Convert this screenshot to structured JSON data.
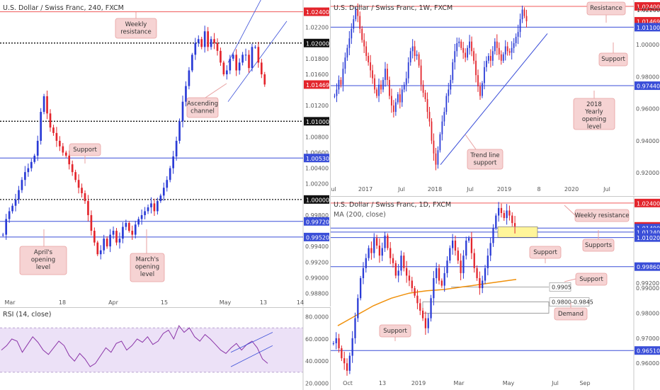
{
  "colors": {
    "up": "#2a3bd6",
    "down": "#e3252c",
    "resistance_line": "#f05a5a",
    "support_line": "#3a4ed8",
    "dotted_line": "#111111",
    "callout_bg": "#f6d3d3",
    "callout_border": "#e8a0a0",
    "ma": "#f0900a",
    "rsi_line": "#8b35a8",
    "rsi_band": "#ece1f7",
    "zone_fill": "#fff59a",
    "price_tag": "#e3252c"
  },
  "panels": [
    {
      "id": "h4",
      "title": "U.S. Dollar / Swiss Franc, 240, FXCM",
      "x_ticks": [
        "Mar",
        "18",
        "Apr",
        "15",
        "May",
        "13",
        "14"
      ],
      "price_axis": [
        "1.02400",
        "1.02200",
        "1.02000",
        "1.01800",
        "1.01600",
        "1.01469",
        "1.01200",
        "1.01000",
        "1.00800",
        "1.00600",
        "1.00530",
        "1.00400",
        "1.00200",
        "1.00000",
        "0.99800",
        "0.99720",
        "0.99520",
        "0.99400",
        "0.99200",
        "0.99000",
        "0.98800"
      ],
      "level_tags": [
        {
          "label": "1.02400",
          "kind": "resistance"
        },
        {
          "label": "1.02000",
          "kind": "dotted"
        },
        {
          "label": "1.01469",
          "kind": "price"
        },
        {
          "label": "1.01000",
          "kind": "dotted"
        },
        {
          "label": "1.00530",
          "kind": "support"
        },
        {
          "label": "1.00000",
          "kind": "dotted"
        },
        {
          "label": "0.99720",
          "kind": "support"
        },
        {
          "label": "0.99520",
          "kind": "support"
        }
      ],
      "callouts": [
        "Weekly resistance",
        "Ascending channel",
        "Support",
        "April's opening level",
        "March's opening level"
      ]
    },
    {
      "id": "rsi",
      "title": "RSI (14, close)",
      "axis": [
        "80.0000",
        "60.0000",
        "40.0000",
        "20.0000"
      ]
    },
    {
      "id": "weekly",
      "title": "U.S. Dollar / Swiss Franc, 1W, FXCM",
      "x_ticks": [
        "ul",
        "2017",
        "Jul",
        "2018",
        "Jul",
        "2019",
        "8",
        "2020",
        "Jul"
      ],
      "price_axis": [
        "1.02400",
        "1.02200",
        "1.01469",
        "1.01100",
        "1.00000",
        "0.98000",
        "0.97440",
        "0.96000",
        "0.94000",
        "0.92000"
      ],
      "level_tags": [
        {
          "label": "1.02400",
          "kind": "resistance"
        },
        {
          "label": "1.02200",
          "kind": "axis"
        },
        {
          "label": "1.01469",
          "kind": "price"
        },
        {
          "label": "1.01100",
          "kind": "support"
        },
        {
          "label": "0.97440",
          "kind": "support"
        }
      ],
      "callouts": [
        "Resistance",
        "Support",
        "2018 Yearly opening level",
        "Trend line support"
      ]
    },
    {
      "id": "daily",
      "title": "U.S. Dollar / Swiss Franc, 1D, FXCM",
      "ma_label": "MA (200, close)",
      "x_ticks": [
        "Oct",
        "13",
        "2019",
        "Mar",
        "May",
        "Jul",
        "Sep"
      ],
      "price_axis": [
        "1.02400",
        "1.01469",
        "1.01400",
        "1.01240",
        "1.01020",
        "0.99860",
        "0.99200",
        "0.99000",
        "0.98000",
        "0.97000",
        "0.96510",
        "0.96000"
      ],
      "level_tags": [
        {
          "label": "1.02400",
          "kind": "resistance"
        },
        {
          "label": "1.01469",
          "kind": "price"
        },
        {
          "label": "1.01400",
          "kind": "support"
        },
        {
          "label": "1.01240",
          "kind": "support"
        },
        {
          "label": "1.01020",
          "kind": "support"
        },
        {
          "label": "0.99860",
          "kind": "support"
        },
        {
          "label": "0.96510",
          "kind": "support"
        }
      ],
      "box_labels": [
        "0.9905",
        "0.9800-0.9845"
      ],
      "callouts": [
        "Weekly resistance",
        "Supports",
        "Support",
        "Support",
        "Demand",
        "Support"
      ]
    }
  ],
  "chart_data": [
    {
      "type": "candlestick",
      "title": "U.S. Dollar / Swiss Franc, 240, FXCM",
      "ylim": [
        0.9875,
        1.0255
      ],
      "horizontal_levels": [
        1.024,
        1.02,
        1.01,
        1.0053,
        1.0,
        0.9972,
        0.9952
      ],
      "close_series": [
        0.9955,
        0.9975,
        0.9985,
        0.9992,
        1.0,
        1.0012,
        1.0025,
        1.0035,
        1.004,
        1.0048,
        1.0056,
        1.0075,
        1.0112,
        1.0132,
        1.011,
        1.0092,
        1.0085,
        1.0075,
        1.0068,
        1.006,
        1.0056,
        1.0045,
        1.0035,
        1.0025,
        1.0015,
        1.0008,
        0.9998,
        0.998,
        0.996,
        0.9945,
        0.993,
        0.9935,
        0.995,
        0.994,
        0.9955,
        0.996,
        0.9945,
        0.995,
        0.9965,
        0.997,
        0.996,
        0.9955,
        0.9968,
        0.9975,
        0.998,
        0.9985,
        0.999,
        0.9995,
        0.9985,
        0.9998,
        1.0005,
        1.0015,
        1.0025,
        1.004,
        1.0055,
        1.0075,
        1.01,
        1.0125,
        1.0145,
        1.0165,
        1.0185,
        1.02,
        1.0205,
        1.0195,
        1.0215,
        1.0195,
        1.0205,
        1.02,
        1.019,
        1.0175,
        1.016,
        1.0165,
        1.018,
        1.0185,
        1.0165,
        1.0175,
        1.0185,
        1.0185,
        1.0168,
        1.0195,
        1.0195,
        1.0175,
        1.016,
        1.0147
      ],
      "last": 1.01469
    },
    {
      "type": "line",
      "title": "RSI (14, close)",
      "ylim": [
        20,
        80
      ],
      "bands": [
        30,
        70
      ],
      "values": [
        50,
        54,
        60,
        58,
        48,
        55,
        62,
        57,
        50,
        46,
        52,
        58,
        54,
        45,
        40,
        47,
        42,
        35,
        38,
        45,
        52,
        48,
        56,
        58,
        50,
        54,
        60,
        57,
        62,
        55,
        58,
        65,
        68,
        60,
        72,
        66,
        70,
        62,
        58,
        64,
        60,
        55,
        50,
        47,
        52,
        56,
        50,
        55,
        58,
        52,
        42,
        38
      ]
    },
    {
      "type": "candlestick",
      "title": "U.S. Dollar / Swiss Franc, 1W, FXCM",
      "ylim": [
        0.912,
        1.028
      ],
      "horizontal_levels": [
        1.024,
        1.011,
        0.9744
      ],
      "close_series": [
        0.968,
        0.972,
        0.978,
        0.975,
        0.985,
        0.992,
        0.998,
        1.004,
        1.01,
        1.016,
        1.022,
        1.018,
        1.01,
        1.003,
        0.999,
        0.993,
        0.989,
        0.984,
        0.979,
        0.972,
        0.968,
        0.975,
        0.972,
        0.978,
        0.985,
        0.978,
        0.968,
        0.962,
        0.958,
        0.964,
        0.969,
        0.964,
        0.972,
        0.975,
        0.979,
        0.989,
        0.996,
        0.999,
        0.993,
        0.994,
        0.987,
        0.975,
        0.97,
        0.966,
        0.958,
        0.952,
        0.94,
        0.932,
        0.925,
        0.934,
        0.944,
        0.952,
        0.958,
        0.968,
        0.972,
        0.978,
        0.989,
        0.996,
        1.001,
        1.002,
        0.998,
        0.995,
        0.992,
        0.998,
        1.002,
        0.996,
        0.99,
        0.981,
        0.974,
        0.968,
        0.976,
        0.986,
        0.99,
        0.993,
        0.99,
        0.996,
        1.002,
        0.998,
        0.994,
        0.99,
        0.994,
        0.999,
        0.996,
        0.995,
        0.998,
        1.001,
        1.005,
        1.008,
        1.016,
        1.022,
        1.018,
        1.0147
      ],
      "trend_line": [
        [
          0.925,
          0.925
        ],
        [
          1.005,
          1.005
        ]
      ],
      "last": 1.01469
    },
    {
      "type": "candlestick",
      "title": "U.S. Dollar / Swiss Franc, 1D, FXCM",
      "ylim": [
        0.953,
        1.0265
      ],
      "horizontal_levels": [
        1.024,
        1.014,
        1.0124,
        1.0102,
        0.9986,
        0.9651
      ],
      "zones": [
        {
          "label": "0.9905",
          "from": 0.9905,
          "to": 0.9905
        },
        {
          "label": "0.9800-0.9845",
          "from": 0.98,
          "to": 0.9845
        }
      ],
      "ma_200": [
        0.975,
        0.977,
        0.979,
        0.981,
        0.983,
        0.9845,
        0.986,
        0.987,
        0.988,
        0.9885,
        0.989,
        0.9892,
        0.9895,
        0.99,
        0.9905,
        0.991,
        0.9915,
        0.992,
        0.9925,
        0.993,
        0.9935
      ],
      "close_series": [
        0.968,
        0.97,
        0.966,
        0.962,
        0.96,
        0.957,
        0.963,
        0.97,
        0.978,
        0.986,
        0.994,
        0.998,
        1.002,
        1.006,
        1.004,
        1.01,
        1.007,
        1.003,
        1.006,
        1.011,
        1.006,
        1.002,
        1.0,
        0.995,
        0.997,
        1.003,
        0.998,
        0.995,
        0.993,
        0.99,
        0.987,
        0.984,
        0.981,
        0.978,
        0.974,
        0.978,
        0.986,
        0.994,
        0.998,
        0.993,
        0.991,
        0.996,
        1.001,
        1.006,
        1.009,
        1.005,
        1.001,
        0.996,
        1.003,
        1.009,
        1.01,
        1.004,
        0.998,
        0.994,
        0.99,
        0.993,
        0.998,
        1.003,
        1.008,
        1.014,
        1.019,
        1.022,
        1.02,
        1.018,
        1.021,
        1.019,
        1.016,
        1.0147
      ],
      "last": 1.01469
    }
  ]
}
